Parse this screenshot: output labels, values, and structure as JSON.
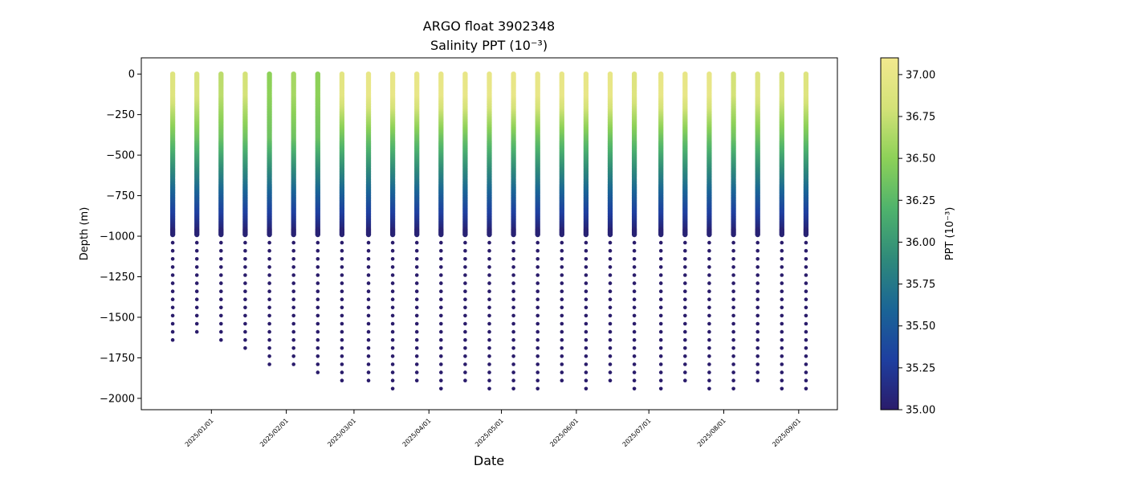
{
  "chart_data": {
    "type": "scatter",
    "title": "ARGO float 3902348",
    "subtitle": "Salinity PPT (10⁻³)",
    "xlabel": "Date",
    "ylabel": "Depth (m)",
    "colorbar_label": "PPT (10⁻³)",
    "ylim": [
      -2070,
      100
    ],
    "xlim": [
      "2024-12-03",
      "2025-09-17"
    ],
    "clim": [
      35.0,
      37.1
    ],
    "colormap_stops": [
      "#2a1c6b",
      "#1e3fa0",
      "#1a6596",
      "#2f8a7a",
      "#4fb36c",
      "#8dd158",
      "#d4e278",
      "#f2e88e"
    ],
    "y_ticks": [
      0,
      -250,
      -500,
      -750,
      -1000,
      -1250,
      -1500,
      -1750,
      -2000
    ],
    "y_tick_labels": [
      "0",
      "−250",
      "−500",
      "−750",
      "−1000",
      "−1250",
      "−1500",
      "−1750",
      "−2000"
    ],
    "x_ticks": [
      "2025-01-01",
      "2025-02-01",
      "2025-03-01",
      "2025-04-01",
      "2025-05-01",
      "2025-06-01",
      "2025-07-01",
      "2025-08-01",
      "2025-09-01"
    ],
    "x_tick_labels": [
      "2025/01/01",
      "2025/02/01",
      "2025/03/01",
      "2025/04/01",
      "2025/05/01",
      "2025/06/01",
      "2025/07/01",
      "2025/08/01",
      "2025/09/01"
    ],
    "colorbar_ticks": [
      35.0,
      35.25,
      35.5,
      35.75,
      36.0,
      36.25,
      36.5,
      36.75,
      37.0
    ],
    "colorbar_tick_labels": [
      "35.00",
      "35.25",
      "35.50",
      "35.75",
      "36.00",
      "36.25",
      "36.50",
      "36.75",
      "37.00"
    ],
    "profiles": [
      {
        "date": "2024-12-16",
        "max_depth": -1680,
        "surface_salinity": 36.9
      },
      {
        "date": "2024-12-26",
        "max_depth": -1630,
        "surface_salinity": 36.85
      },
      {
        "date": "2025-01-05",
        "max_depth": -1680,
        "surface_salinity": 36.7
      },
      {
        "date": "2025-01-15",
        "max_depth": -1730,
        "surface_salinity": 36.8
      },
      {
        "date": "2025-01-25",
        "max_depth": -1830,
        "surface_salinity": 36.5
      },
      {
        "date": "2025-02-04",
        "max_depth": -1830,
        "surface_salinity": 36.6
      },
      {
        "date": "2025-02-14",
        "max_depth": -1880,
        "surface_salinity": 36.5
      },
      {
        "date": "2025-02-24",
        "max_depth": -1930,
        "surface_salinity": 36.95
      },
      {
        "date": "2025-03-07",
        "max_depth": -1930,
        "surface_salinity": 37.0
      },
      {
        "date": "2025-03-17",
        "max_depth": -1980,
        "surface_salinity": 37.0
      },
      {
        "date": "2025-03-27",
        "max_depth": -1930,
        "surface_salinity": 37.0
      },
      {
        "date": "2025-04-06",
        "max_depth": -1980,
        "surface_salinity": 37.0
      },
      {
        "date": "2025-04-16",
        "max_depth": -1930,
        "surface_salinity": 37.0
      },
      {
        "date": "2025-04-26",
        "max_depth": -1980,
        "surface_salinity": 37.0
      },
      {
        "date": "2025-05-06",
        "max_depth": -1980,
        "surface_salinity": 37.0
      },
      {
        "date": "2025-05-16",
        "max_depth": -1980,
        "surface_salinity": 37.0
      },
      {
        "date": "2025-05-26",
        "max_depth": -1930,
        "surface_salinity": 37.0
      },
      {
        "date": "2025-06-05",
        "max_depth": -1980,
        "surface_salinity": 37.0
      },
      {
        "date": "2025-06-15",
        "max_depth": -1930,
        "surface_salinity": 37.0
      },
      {
        "date": "2025-06-25",
        "max_depth": -1980,
        "surface_salinity": 36.9
      },
      {
        "date": "2025-07-06",
        "max_depth": -1980,
        "surface_salinity": 37.0
      },
      {
        "date": "2025-07-16",
        "max_depth": -1930,
        "surface_salinity": 37.0
      },
      {
        "date": "2025-07-26",
        "max_depth": -1980,
        "surface_salinity": 37.0
      },
      {
        "date": "2025-08-05",
        "max_depth": -1980,
        "surface_salinity": 36.8
      },
      {
        "date": "2025-08-15",
        "max_depth": -1930,
        "surface_salinity": 36.9
      },
      {
        "date": "2025-08-25",
        "max_depth": -1980,
        "surface_salinity": 36.85
      },
      {
        "date": "2025-09-04",
        "max_depth": -1980,
        "surface_salinity": 36.9
      }
    ]
  }
}
